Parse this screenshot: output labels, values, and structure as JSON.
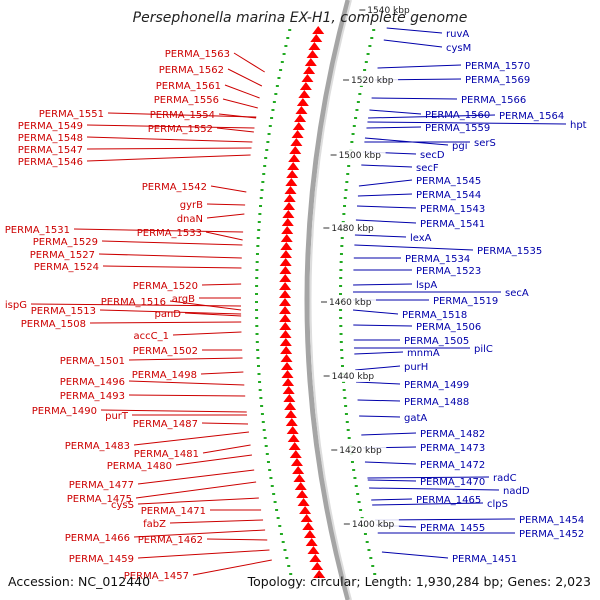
{
  "header": {
    "title": "Persephonella marina EX-H1, complete genome"
  },
  "footer": {
    "accession": "Accession: NC_012440",
    "summary": "Topology: circular; Length: 1,930,284 bp; Genes: 2,023"
  },
  "map": {
    "colors": {
      "left_label": "#cc0000",
      "right_label": "#0000aa",
      "arrow_fwd": "#ff0000",
      "arrow_rev": "#0022ee",
      "backbone": "#999999"
    },
    "ticks": [
      "1540 kbp",
      "1520 kbp",
      "1500 kbp",
      "1480 kbp",
      "1460 kbp",
      "1440 kbp",
      "1420 kbp",
      "1400 kbp"
    ],
    "left_genes": [
      "PERMA_1563",
      "PERMA_1562",
      "PERMA_1561",
      "PERMA_1556",
      "PERMA_1551",
      "PERMA_1554",
      "PERMA_1549",
      "PERMA_1552",
      "PERMA_1548",
      "PERMA_1547",
      "PERMA_1546",
      "PERMA_1542",
      "gyrB",
      "dnaN",
      "PERMA_1531",
      "PERMA_1533",
      "PERMA_1529",
      "PERMA_1527",
      "PERMA_1524",
      "PERMA_1520",
      "argB",
      "ispG",
      "PERMA_1516",
      "PERMA_1513",
      "panD",
      "PERMA_1508",
      "accC_1",
      "PERMA_1502",
      "PERMA_1501",
      "PERMA_1498",
      "PERMA_1496",
      "PERMA_1493",
      "PERMA_1490",
      "purT",
      "PERMA_1487",
      "PERMA_1483",
      "PERMA_1481",
      "PERMA_1480",
      "PERMA_1477",
      "PERMA_1475",
      "cysS",
      "PERMA_1471",
      "fabZ",
      "PERMA_1466",
      "PERMA_1462",
      "PERMA_1459",
      "PERMA_1457"
    ],
    "right_genes": [
      "ruvA",
      "cysM",
      "PERMA_1570",
      "PERMA_1569",
      "PERMA_1566",
      "PERMA_1560",
      "PERMA_1564",
      "hpt",
      "PERMA_1559",
      "pgi",
      "serS",
      "secD",
      "secF",
      "PERMA_1545",
      "PERMA_1544",
      "PERMA_1543",
      "PERMA_1541",
      "lexA",
      "PERMA_1535",
      "PERMA_1534",
      "PERMA_1523",
      "lspA",
      "secA",
      "PERMA_1519",
      "PERMA_1518",
      "PERMA_1506",
      "PERMA_1505",
      "pilC",
      "mnmA",
      "purH",
      "PERMA_1499",
      "PERMA_1488",
      "gatA",
      "PERMA_1482",
      "PERMA_1473",
      "PERMA_1472",
      "radC",
      "PERMA_1470",
      "nadD",
      "PERMA_1465",
      "clpS",
      "PERMA_1454",
      "PERMA_1455",
      "PERMA_1452",
      "PERMA_1451"
    ]
  }
}
